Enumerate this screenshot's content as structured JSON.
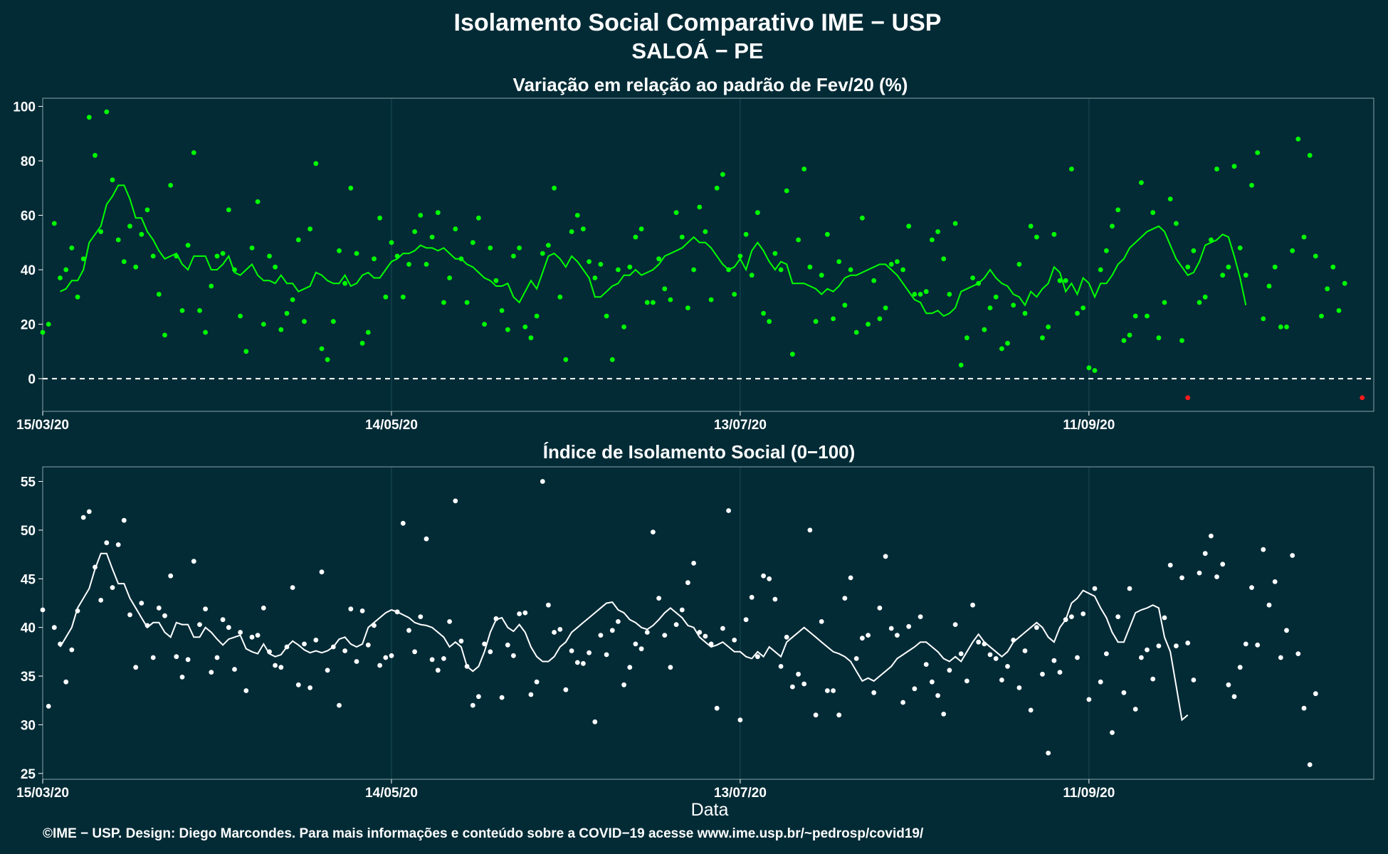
{
  "page": {
    "title_line1": "Isolamento Social Comparativo IME − USP",
    "title_line2": "SALOÁ − PE",
    "x_axis_label": "Data",
    "footer": "©IME − USP. Design: Diego Marcondes. Para mais informações e conteúdo sobre a COVID−19 acesse www.ime.usp.br/~pedrosp/covid19/"
  },
  "colors": {
    "background": "#022b36",
    "grid": "#1d4a55",
    "panel_border": "#8aa3aa",
    "green": "#00ff00",
    "red": "#ff1a1a",
    "white": "#ffffff"
  },
  "chart_data": [
    {
      "type": "scatter",
      "title": "Variação em relação ao padrão de Fev/20 (%)",
      "x_start_date": "15/03/20",
      "x_tick_labels": [
        "15/03/20",
        "14/05/20",
        "13/07/20",
        "11/09/20"
      ],
      "x_tick_days": [
        0,
        60,
        120,
        180
      ],
      "xlim_days": [
        0,
        229
      ],
      "ylim": [
        -12,
        103
      ],
      "y_ticks": [
        0,
        20,
        40,
        60,
        80,
        100
      ],
      "grid": true,
      "reference_line_y": 0,
      "point_color": "#00ff00",
      "negative_point_color": "#ff1a1a",
      "line_color": "#00ff00",
      "series": [
        {
          "kind": "daily_points",
          "values": [
            17,
            20,
            57,
            37,
            40,
            48,
            30,
            44,
            96,
            82,
            54,
            98,
            73,
            51,
            43,
            56,
            41,
            53,
            62,
            45,
            31,
            16,
            71,
            45,
            25,
            49,
            83,
            25,
            17,
            34,
            45,
            46,
            62,
            40,
            23,
            10,
            48,
            65,
            20,
            45,
            41,
            18,
            24,
            29,
            51,
            21,
            55,
            79,
            11,
            7,
            21,
            47,
            35,
            70,
            46,
            13,
            17,
            44,
            59,
            30,
            50,
            45,
            30,
            42,
            54,
            60,
            42,
            52,
            61,
            28,
            37,
            55,
            44,
            28,
            50,
            59,
            20,
            48,
            36,
            25,
            18,
            45,
            48,
            19,
            15,
            23,
            46,
            49,
            70,
            30,
            7,
            54,
            60,
            55,
            43,
            37,
            42,
            23,
            7,
            40,
            19,
            41,
            52,
            55,
            28,
            28,
            44,
            33,
            29,
            61,
            52,
            26,
            40,
            63,
            54,
            29,
            70,
            75,
            40,
            31,
            45,
            53,
            38,
            61,
            24,
            21,
            46,
            40,
            69,
            9,
            51,
            77,
            41,
            21,
            38,
            53,
            22,
            43,
            27,
            40,
            17,
            59,
            20,
            36,
            22,
            26,
            42,
            43,
            40,
            56,
            31,
            31,
            32,
            51,
            54,
            44,
            31,
            57,
            5,
            15,
            37,
            35,
            18,
            26,
            30,
            11,
            13,
            27,
            42,
            24,
            56,
            52,
            15,
            19,
            53,
            36,
            36,
            77,
            24,
            26,
            4,
            3,
            40,
            47,
            56,
            62,
            14,
            16,
            23,
            72,
            23,
            61,
            15,
            28,
            66,
            57,
            14,
            41,
            47,
            28,
            30,
            51,
            77,
            38,
            41,
            78,
            48,
            38,
            71,
            83,
            22,
            34,
            41,
            19,
            19,
            47,
            88,
            52,
            82,
            45,
            23,
            33,
            41,
            25,
            35
          ],
          "negative_values_note_days": [
            197,
            227
          ]
        },
        {
          "kind": "rolling_mean",
          "values": [
            32,
            33,
            36,
            36,
            40,
            50,
            53,
            56,
            64,
            67,
            71,
            71,
            66,
            59,
            59,
            54,
            51,
            47,
            44,
            45,
            46,
            42,
            40,
            45,
            45,
            45,
            40,
            40,
            42,
            45,
            39,
            38,
            40,
            42,
            38,
            36,
            36,
            35,
            38,
            35,
            35,
            32,
            33,
            34,
            39,
            38,
            36,
            35,
            35,
            38,
            34,
            35,
            38,
            39,
            37,
            37,
            40,
            43,
            44,
            46,
            46,
            47,
            49,
            48,
            48,
            47,
            48,
            46,
            44,
            44,
            42,
            41,
            39,
            37,
            36,
            34,
            34,
            35,
            30,
            28,
            32,
            36,
            33,
            39,
            45,
            46,
            44,
            41,
            45,
            43,
            40,
            37,
            30,
            30,
            32,
            34,
            35,
            38,
            38,
            40,
            38,
            39,
            40,
            42,
            45,
            46,
            47,
            48,
            50,
            52,
            50,
            50,
            48,
            45,
            42,
            40,
            41,
            44,
            40,
            47,
            50,
            47,
            43,
            40,
            43,
            42,
            35,
            35,
            35,
            34,
            33,
            31,
            33,
            32,
            34,
            37,
            38,
            38,
            39,
            40,
            41,
            42,
            42,
            40,
            38,
            35,
            32,
            29,
            28,
            24,
            24,
            25,
            23,
            24,
            26,
            32,
            33,
            34,
            35,
            37,
            40,
            37,
            35,
            34,
            31,
            30,
            27,
            32,
            30,
            33,
            35,
            41,
            39,
            32,
            35,
            31,
            37,
            35,
            30,
            35,
            35,
            38,
            42,
            44,
            48,
            50,
            52,
            54,
            55,
            56,
            54,
            49,
            44,
            41,
            38,
            39,
            43,
            49,
            50,
            51,
            53,
            52,
            45,
            37,
            27
          ]
        }
      ]
    },
    {
      "type": "scatter",
      "title": "Índice de Isolamento Social (0−100)",
      "x_start_date": "15/03/20",
      "x_tick_labels": [
        "15/03/20",
        "14/05/20",
        "13/07/20",
        "11/09/20"
      ],
      "x_tick_days": [
        0,
        60,
        120,
        180
      ],
      "xlim_days": [
        0,
        229
      ],
      "ylim": [
        24.4,
        56.5
      ],
      "y_ticks": [
        25,
        30,
        35,
        40,
        45,
        50,
        55
      ],
      "grid": true,
      "xlabel": "Data",
      "point_color": "#ffffff",
      "line_color": "#ffffff",
      "series": [
        {
          "kind": "daily_points",
          "values": [
            41.8,
            31.9,
            40.0,
            38.3,
            34.4,
            37.7,
            41.7,
            51.3,
            51.9,
            46.2,
            42.8,
            48.7,
            44.1,
            48.5,
            51.0,
            41.3,
            35.9,
            42.5,
            40.2,
            36.9,
            42.0,
            41.2,
            45.3,
            37.0,
            34.9,
            36.7,
            46.8,
            40.3,
            41.9,
            35.4,
            36.9,
            40.8,
            40.0,
            35.7,
            39.5,
            33.5,
            39.0,
            39.2,
            42.0,
            37.5,
            36.1,
            35.9,
            38.0,
            44.1,
            34.1,
            38.3,
            33.8,
            38.7,
            45.7,
            35.6,
            38.0,
            32.0,
            37.6,
            41.9,
            36.5,
            41.7,
            38.2,
            40.2,
            36.1,
            36.9,
            37.1,
            41.6,
            50.7,
            39.7,
            37.5,
            41.1,
            49.1,
            36.7,
            35.6,
            36.8,
            40.6,
            53.0,
            38.6,
            36.0,
            32.0,
            32.9,
            38.3,
            37.5,
            40.9,
            32.8,
            38.2,
            37.1,
            41.4,
            41.5,
            33.1,
            34.4,
            55.0,
            42.3,
            39.5,
            39.8,
            33.6,
            37.6,
            36.4,
            36.3,
            37.4,
            30.3,
            39.2,
            37.2,
            39.7,
            40.6,
            34.1,
            35.9,
            38.3,
            37.8,
            39.5,
            49.8,
            43.0,
            39.2,
            35.9,
            40.3,
            41.8,
            44.6,
            46.6,
            39.5,
            39.1,
            38.3,
            31.7,
            39.9,
            52.0,
            38.7,
            30.5,
            40.8,
            43.1,
            37.0,
            45.3,
            45.0,
            42.9,
            36.0,
            39.0,
            33.9,
            35.2,
            34.2,
            50.0,
            31.0,
            40.6,
            33.5,
            33.5,
            31.0,
            43.0,
            45.1,
            36.8,
            38.9,
            39.2,
            33.3,
            42.0,
            47.3,
            39.9,
            39.2,
            32.3,
            40.1,
            33.7,
            41.1,
            36.2,
            34.4,
            33.0,
            31.1,
            35.6,
            40.3,
            37.3,
            34.5,
            42.3,
            38.5,
            38.3,
            37.2,
            36.8,
            34.6,
            36.0,
            38.7,
            33.8,
            37.6,
            31.5,
            40.0,
            35.2,
            27.1,
            36.6,
            35.4,
            40.8,
            41.1,
            36.9,
            41.4,
            32.6,
            44.0,
            34.4,
            37.3,
            29.2,
            41.1,
            33.3,
            44.0,
            31.6,
            36.9,
            37.7,
            34.7,
            38.1,
            41.0,
            46.4,
            38.1,
            45.1,
            38.4,
            34.6,
            45.6,
            47.6,
            49.4,
            45.2,
            46.5,
            34.1,
            32.9,
            35.9,
            38.3,
            44.1,
            38.2,
            48.0,
            42.3,
            44.7,
            36.9,
            39.7,
            47.4,
            37.3,
            31.7,
            25.9,
            33.2
          ]
        },
        {
          "kind": "rolling_mean",
          "values": [
            38.0,
            39.0,
            40.0,
            42.0,
            43.0,
            44.0,
            46.0,
            47.6,
            47.6,
            46.0,
            44.5,
            44.5,
            43.0,
            42.0,
            41.0,
            40.0,
            40.5,
            40.5,
            39.5,
            39.0,
            40.5,
            40.3,
            40.3,
            39.0,
            39.0,
            40.0,
            39.5,
            38.8,
            38.2,
            38.8,
            39.0,
            39.2,
            37.8,
            37.5,
            37.3,
            38.3,
            37.3,
            37.0,
            37.2,
            38.0,
            38.6,
            38.2,
            37.7,
            37.4,
            37.6,
            37.4,
            37.6,
            38.0,
            38.8,
            39.0,
            38.3,
            38.0,
            38.3,
            40.0,
            40.5,
            41.0,
            41.5,
            41.8,
            41.6,
            41.3,
            41.0,
            40.5,
            40.3,
            40.2,
            40.0,
            39.5,
            39.0,
            38.0,
            38.5,
            38.0,
            36.0,
            35.5,
            36.0,
            37.5,
            39.5,
            40.8,
            41.0,
            40.0,
            39.6,
            40.3,
            39.5,
            38.0,
            37.0,
            36.5,
            36.5,
            37.0,
            38.0,
            38.5,
            39.5,
            40.0,
            40.5,
            41.0,
            41.5,
            42.0,
            42.5,
            42.6,
            41.8,
            41.5,
            40.8,
            40.5,
            40.0,
            39.8,
            40.2,
            40.8,
            41.5,
            42.0,
            41.5,
            41.0,
            40.2,
            40.0,
            39.0,
            38.5,
            38.0,
            38.2,
            38.5,
            38.0,
            37.5,
            37.5,
            37.0,
            36.8,
            37.5,
            37.0,
            38.0,
            37.5,
            37.0,
            38.5,
            39.0,
            39.5,
            40.0,
            39.5,
            39.0,
            38.5,
            38.0,
            37.5,
            37.3,
            37.0,
            36.5,
            35.5,
            34.5,
            34.8,
            34.5,
            35.0,
            35.5,
            36.0,
            36.8,
            37.2,
            37.6,
            38.0,
            38.5,
            38.5,
            38.0,
            37.5,
            36.8,
            36.5,
            37.0,
            36.5,
            37.5,
            38.5,
            39.3,
            38.5,
            38.0,
            37.5,
            37.0,
            37.5,
            38.5,
            39.0,
            39.5,
            40.0,
            40.5,
            40.0,
            39.0,
            38.5,
            40.0,
            40.8,
            42.5,
            43.0,
            43.8,
            43.5,
            43.2,
            42.0,
            41.0,
            39.5,
            38.5,
            38.5,
            40.0,
            41.5,
            41.8,
            42.0,
            42.3,
            42.0,
            39.0,
            37.5,
            34.0,
            30.5,
            31.0
          ]
        }
      ]
    }
  ]
}
